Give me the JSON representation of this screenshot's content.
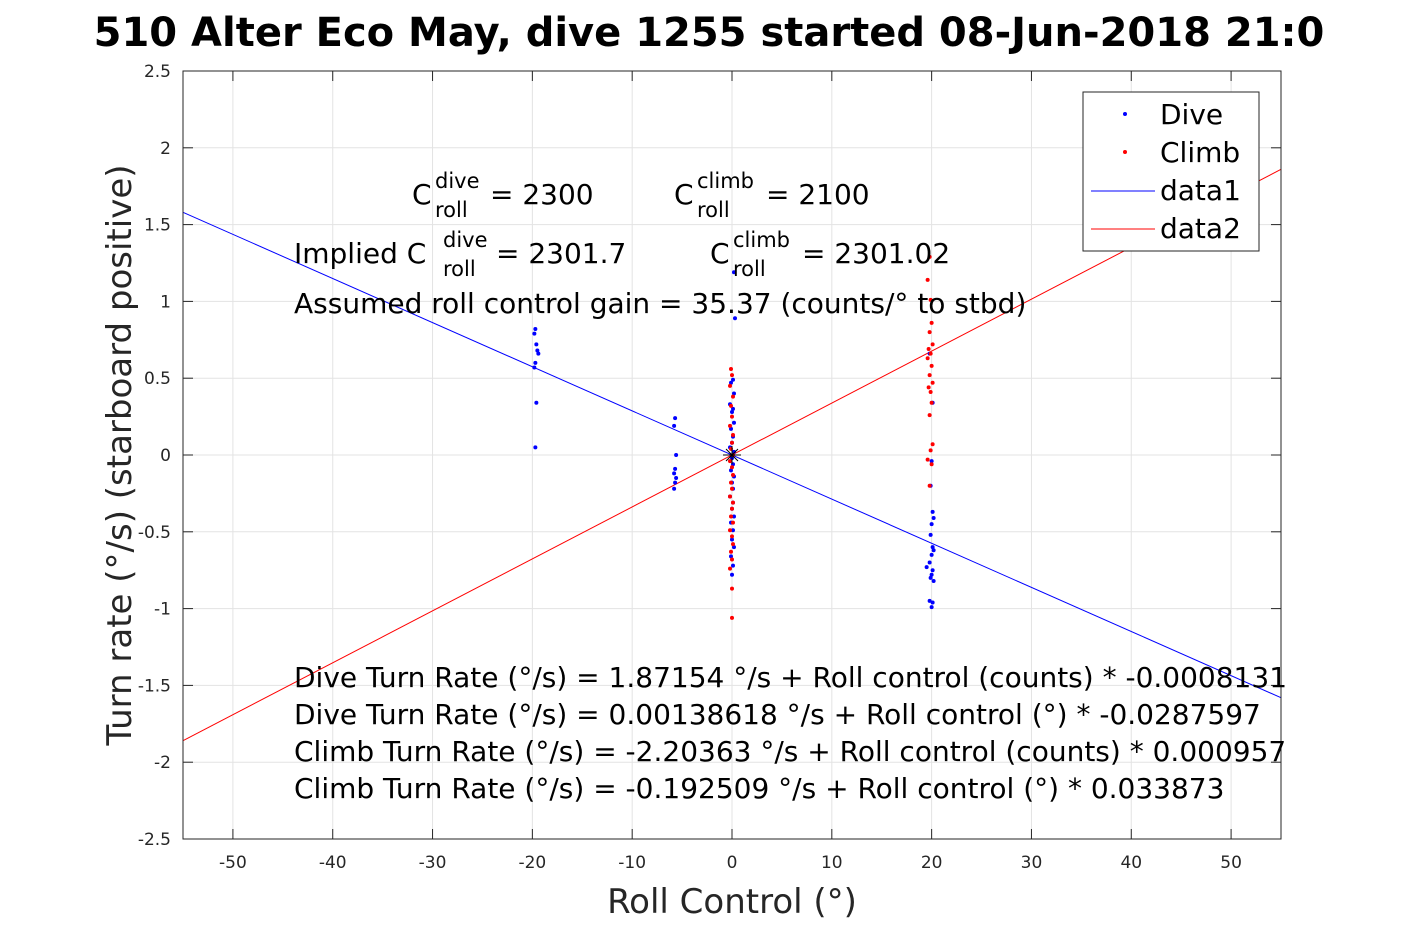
{
  "chart_data": {
    "type": "scatter",
    "title": "510 Alter Eco May, dive 1255 started 08-Jun-2018 21:0",
    "xlabel": "Roll Control (°)",
    "ylabel": "Turn rate (°/s) (starboard positive)",
    "xlim": [
      -55,
      55
    ],
    "ylim": [
      -2.5,
      2.5
    ],
    "xticks": [
      -50,
      -40,
      -30,
      -20,
      -10,
      0,
      10,
      20,
      30,
      40,
      50
    ],
    "xtick_labels": [
      "-50",
      "-40",
      "-30",
      "-20",
      "-10",
      "0",
      "10",
      "20",
      "30",
      "40",
      "50"
    ],
    "yticks": [
      -2.5,
      -2,
      -1.5,
      -1,
      -0.5,
      0,
      0.5,
      1,
      1.5,
      2,
      2.5
    ],
    "ytick_labels": [
      "-2.5",
      "-2",
      "-1.5",
      "-1",
      "-0.5",
      "0",
      "0.5",
      "1",
      "1.5",
      "2",
      "2.5"
    ],
    "grid": true,
    "legend_position": "top-right",
    "series": [
      {
        "name": "Dive",
        "kind": "points",
        "color": "#0000ff",
        "points": [
          [
            -19.7,
            0.82
          ],
          [
            -19.8,
            0.79
          ],
          [
            -19.6,
            0.72
          ],
          [
            -19.5,
            0.68
          ],
          [
            -19.4,
            0.66
          ],
          [
            -19.7,
            0.6
          ],
          [
            -19.8,
            0.57
          ],
          [
            -19.6,
            0.34
          ],
          [
            -19.7,
            0.05
          ],
          [
            -5.7,
            0.24
          ],
          [
            -5.8,
            0.19
          ],
          [
            -5.6,
            0.0
          ],
          [
            -5.7,
            -0.09
          ],
          [
            -5.8,
            -0.12
          ],
          [
            -5.6,
            -0.15
          ],
          [
            -5.7,
            -0.18
          ],
          [
            -5.8,
            -0.22
          ],
          [
            0.2,
            1.19
          ],
          [
            0.3,
            0.89
          ],
          [
            0.1,
            0.49
          ],
          [
            -0.1,
            0.47
          ],
          [
            0.2,
            0.4
          ],
          [
            -0.2,
            0.33
          ],
          [
            0.1,
            0.3
          ],
          [
            0.0,
            0.28
          ],
          [
            0.2,
            0.21
          ],
          [
            -0.1,
            0.17
          ],
          [
            0.1,
            0.12
          ],
          [
            0.0,
            0.08
          ],
          [
            -0.2,
            0.05
          ],
          [
            0.2,
            0.02
          ],
          [
            0.0,
            -0.02
          ],
          [
            0.1,
            -0.06
          ],
          [
            -0.1,
            -0.1
          ],
          [
            0.2,
            -0.14
          ],
          [
            0.0,
            -0.18
          ],
          [
            0.1,
            -0.22
          ],
          [
            -0.2,
            -0.27
          ],
          [
            0.1,
            -0.31
          ],
          [
            0.0,
            -0.35
          ],
          [
            0.2,
            -0.4
          ],
          [
            -0.1,
            -0.44
          ],
          [
            0.1,
            -0.49
          ],
          [
            0.0,
            -0.55
          ],
          [
            0.2,
            -0.6
          ],
          [
            -0.1,
            -0.66
          ],
          [
            0.1,
            -0.72
          ],
          [
            0.0,
            -0.78
          ],
          [
            19.8,
            0.66
          ],
          [
            20.1,
            0.34
          ],
          [
            20.0,
            -0.04
          ],
          [
            19.9,
            -0.2
          ],
          [
            20.1,
            -0.37
          ],
          [
            20.2,
            -0.41
          ],
          [
            20.0,
            -0.45
          ],
          [
            19.9,
            -0.52
          ],
          [
            20.1,
            -0.6
          ],
          [
            20.2,
            -0.62
          ],
          [
            20.0,
            -0.65
          ],
          [
            19.8,
            -0.7
          ],
          [
            19.5,
            -0.73
          ],
          [
            20.1,
            -0.75
          ],
          [
            20.0,
            -0.78
          ],
          [
            19.9,
            -0.8
          ],
          [
            20.2,
            -0.82
          ],
          [
            19.8,
            -0.95
          ],
          [
            20.1,
            -0.96
          ],
          [
            20.0,
            -0.99
          ]
        ]
      },
      {
        "name": "Climb",
        "kind": "points",
        "color": "#ff0000",
        "points": [
          [
            -0.1,
            0.56
          ],
          [
            0.0,
            0.52
          ],
          [
            -0.2,
            0.45
          ],
          [
            0.1,
            0.38
          ],
          [
            -0.1,
            0.32
          ],
          [
            0.0,
            0.25
          ],
          [
            -0.2,
            0.19
          ],
          [
            0.1,
            0.13
          ],
          [
            0.0,
            0.08
          ],
          [
            -0.1,
            0.04
          ],
          [
            0.1,
            0.0
          ],
          [
            -0.2,
            -0.04
          ],
          [
            0.0,
            -0.08
          ],
          [
            0.1,
            -0.13
          ],
          [
            -0.1,
            -0.18
          ],
          [
            0.0,
            -0.22
          ],
          [
            -0.2,
            -0.27
          ],
          [
            0.1,
            -0.31
          ],
          [
            0.0,
            -0.35
          ],
          [
            -0.1,
            -0.4
          ],
          [
            0.1,
            -0.44
          ],
          [
            -0.2,
            -0.49
          ],
          [
            0.0,
            -0.53
          ],
          [
            0.1,
            -0.58
          ],
          [
            -0.1,
            -0.63
          ],
          [
            0.0,
            -0.68
          ],
          [
            -0.2,
            -0.74
          ],
          [
            0.0,
            -0.87
          ],
          [
            0.0,
            -1.06
          ],
          [
            19.8,
            1.29
          ],
          [
            19.6,
            1.14
          ],
          [
            19.9,
            1.01
          ],
          [
            20.0,
            0.86
          ],
          [
            19.8,
            0.8
          ],
          [
            20.1,
            0.72
          ],
          [
            19.7,
            0.69
          ],
          [
            19.9,
            0.66
          ],
          [
            19.6,
            0.63
          ],
          [
            20.0,
            0.58
          ],
          [
            19.8,
            0.52
          ],
          [
            20.1,
            0.47
          ],
          [
            19.7,
            0.44
          ],
          [
            19.9,
            0.41
          ],
          [
            20.0,
            0.34
          ],
          [
            19.8,
            0.26
          ],
          [
            20.1,
            0.07
          ],
          [
            19.9,
            0.03
          ],
          [
            19.6,
            -0.03
          ],
          [
            20.0,
            -0.06
          ],
          [
            19.8,
            -0.2
          ]
        ]
      },
      {
        "name": "data1",
        "kind": "line",
        "color": "#0000ff",
        "x": [
          -55,
          55
        ],
        "y": [
          1.58,
          -1.58
        ]
      },
      {
        "name": "data2",
        "kind": "line",
        "color": "#ff0000",
        "x": [
          -55,
          55
        ],
        "y": [
          -1.86,
          1.86
        ]
      }
    ],
    "annotations": {
      "c_dive_pre": "C",
      "c_dive_sup": "dive",
      "c_dive_sub": "roll",
      "c_dive_val": " = 2300",
      "c_climb_pre": "C",
      "c_climb_sup": "climb",
      "c_climb_sub": "roll",
      "c_climb_val": " = 2100",
      "implied_pre": "Implied C",
      "implied_dive_sup": "dive",
      "implied_dive_sub": "roll",
      "implied_dive_val": " = 2301.7",
      "implied_climb_pre": "C",
      "implied_climb_sup": "climb",
      "implied_climb_sub": "roll",
      "implied_climb_val": " = 2301.02",
      "gain_line": "Assumed roll control gain = 35.37 (counts/° to stbd)",
      "eq1": "Dive Turn Rate (°/s) = 1.87154 °/s + Roll control (counts) * -0.0008131",
      "eq2": "Dive Turn Rate (°/s) = 0.00138618 °/s + Roll control (°) * -0.0287597",
      "eq3": "Climb Turn Rate (°/s) = -2.20363 °/s + Roll control (counts) * 0.000957",
      "eq4": "Climb Turn Rate (°/s) = -0.192509 °/s + Roll control (°) * 0.033873"
    }
  }
}
